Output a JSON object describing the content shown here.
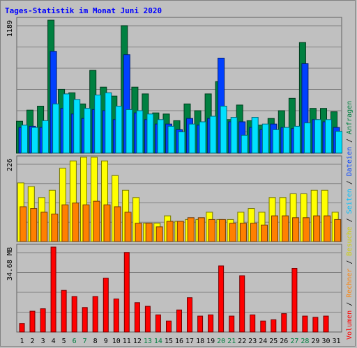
{
  "title": "Tages-Statistik im Monat Juni 2020",
  "chart_data": {
    "type": "bar",
    "title": "Tages-Statistik im Monat Juni 2020",
    "categories": [
      "1",
      "2",
      "3",
      "4",
      "5",
      "6",
      "7",
      "8",
      "9",
      "10",
      "11",
      "12",
      "13",
      "14",
      "15",
      "16",
      "17",
      "18",
      "19",
      "20",
      "21",
      "22",
      "23",
      "24",
      "25",
      "26",
      "27",
      "28",
      "29",
      "30",
      "31"
    ],
    "weekend_days": [
      "6",
      "7",
      "13",
      "14",
      "20",
      "21",
      "27",
      "28"
    ],
    "panels": [
      {
        "id": "requests",
        "ymax_label": "1189",
        "ymax": 1189,
        "series": [
          {
            "name": "Anfragen",
            "color": "#008040",
            "values": [
              285,
              385,
              420,
              1189,
              570,
              540,
              440,
              740,
              590,
              510,
              1140,
              590,
              530,
              360,
              350,
              290,
              440,
              380,
              530,
              640,
              300,
              430,
              290,
              250,
              310,
              380,
              490,
              990,
              400,
              400,
              370
            ]
          },
          {
            "name": "Dateien",
            "color": "#0040ff",
            "values": [
              230,
              240,
              230,
              910,
              400,
              350,
              310,
              390,
              380,
              300,
              880,
              360,
              300,
              260,
              260,
              210,
              310,
              250,
              310,
              850,
              280,
              280,
              230,
              210,
              260,
              230,
              220,
              800,
              300,
              280,
              230
            ]
          },
          {
            "name": "Seiten",
            "color": "#00e0ff",
            "values": [
              250,
              230,
              290,
              440,
              530,
              480,
              400,
              520,
              540,
              420,
              390,
              380,
              350,
              300,
              240,
              190,
              260,
              280,
              330,
              420,
              320,
              160,
              320,
              260,
              210,
              230,
              240,
              270,
              300,
              300,
              195
            ]
          }
        ]
      },
      {
        "id": "visits",
        "ymax_label": "226",
        "ymax": 226,
        "series": [
          {
            "name": "Besuche",
            "color": "#ffff00",
            "values": [
              160,
              150,
              120,
              140,
              200,
              220,
              230,
              230,
              220,
              180,
              140,
              120,
              50,
              50,
              70,
              55,
              60,
              60,
              80,
              60,
              60,
              80,
              90,
              80,
              120,
              120,
              130,
              130,
              140,
              140,
              80
            ]
          },
          {
            "name": "Rechner",
            "color": "#ff8000",
            "values": [
              95,
              90,
              80,
              75,
              100,
              105,
              100,
              110,
              100,
              95,
              80,
              50,
              50,
              40,
              55,
              55,
              65,
              65,
              60,
              60,
              50,
              50,
              50,
              45,
              70,
              70,
              65,
              65,
              70,
              70,
              60
            ]
          }
        ]
      },
      {
        "id": "volume",
        "ymax_label": "34.68 MB",
        "ymax": 34.68,
        "series": [
          {
            "name": "Volumen",
            "color": "#ff0000",
            "values": [
              3.5,
              8.5,
              9.5,
              34.68,
              17,
              14.5,
              10,
              14.5,
              22,
              13.5,
              32.5,
              12,
              10.5,
              7,
              4.5,
              9,
              14,
              6.5,
              7,
              27,
              6.5,
              23,
              7,
              4.5,
              5,
              7.5,
              26,
              6.5,
              6,
              6.5,
              0
            ]
          }
        ]
      }
    ],
    "legend": {
      "placement": "right-vertical",
      "items": [
        {
          "text": "Volumen",
          "color": "#ff0000"
        },
        {
          "text": " / ",
          "color": "#000000"
        },
        {
          "text": "Rechner",
          "color": "#ff8000"
        },
        {
          "text": " / ",
          "color": "#000000"
        },
        {
          "text": "Besuche",
          "color": "#d0d000"
        },
        {
          "text": " / ",
          "color": "#000000"
        },
        {
          "text": "Seiten",
          "color": "#00c0ff"
        },
        {
          "text": " / ",
          "color": "#000000"
        },
        {
          "text": "Dateien",
          "color": "#0040ff"
        },
        {
          "text": " / ",
          "color": "#000000"
        },
        {
          "text": "Anfragen",
          "color": "#008040"
        }
      ]
    },
    "grid": true,
    "weekday_tick_color": "#000000",
    "weekend_tick_color": "#008040"
  }
}
